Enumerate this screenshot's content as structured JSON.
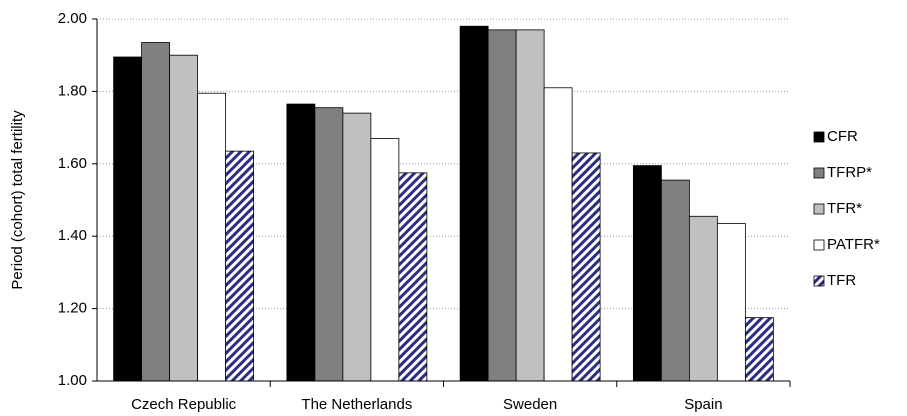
{
  "chart_data": {
    "type": "bar",
    "y_label": "Period (cohort) total fertility",
    "categories": [
      "Czech Republic",
      "The Netherlands",
      "Sweden",
      "Spain"
    ],
    "series": [
      {
        "name": "CFR",
        "color": "#000000",
        "values": [
          1.895,
          1.765,
          1.98,
          1.595
        ]
      },
      {
        "name": "TFRP*",
        "color": "#808080",
        "values": [
          1.935,
          1.755,
          1.97,
          1.555
        ]
      },
      {
        "name": "TFR*",
        "color": "#c0c0c0",
        "values": [
          1.9,
          1.74,
          1.97,
          1.455
        ]
      },
      {
        "name": "PATFR*",
        "color": "#ffffff",
        "values": [
          1.795,
          1.67,
          1.81,
          1.435
        ]
      },
      {
        "name": "TFR",
        "color": "#2e2e80",
        "fill_style": "hatched",
        "values": [
          1.635,
          1.575,
          1.63,
          1.175
        ]
      }
    ],
    "ylim": [
      1.0,
      2.0
    ],
    "yticks": [
      {
        "value": 1.0,
        "label": "1.00"
      },
      {
        "value": 1.2,
        "label": "1.20"
      },
      {
        "value": 1.4,
        "label": "1.40"
      },
      {
        "value": 1.6,
        "label": "1.60"
      },
      {
        "value": 1.8,
        "label": "1.80"
      },
      {
        "value": 2.0,
        "label": "2.00"
      }
    ],
    "grid": true,
    "legend": "right"
  }
}
